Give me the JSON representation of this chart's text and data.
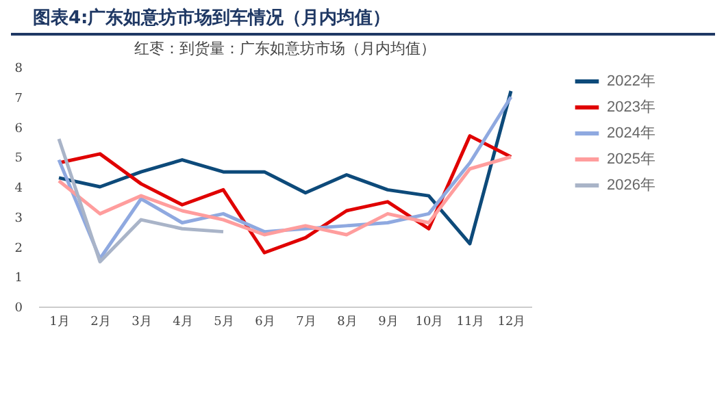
{
  "chart_data": {
    "type": "line",
    "title": "图表4:广东如意坊市场到车情况（月内均值）",
    "subtitle": "红枣：到货量：广东如意坊市场（月内均值）",
    "categories": [
      "1月",
      "2月",
      "3月",
      "4月",
      "5月",
      "6月",
      "7月",
      "8月",
      "9月",
      "10月",
      "11月",
      "12月"
    ],
    "series": [
      {
        "name": "2022年",
        "color": "#0d4a7a",
        "values": [
          4.3,
          4.0,
          4.5,
          4.9,
          4.5,
          4.5,
          3.8,
          4.4,
          3.9,
          3.7,
          2.1,
          7.2
        ]
      },
      {
        "name": "2023年",
        "color": "#e00000",
        "values": [
          4.8,
          5.1,
          4.1,
          3.4,
          3.9,
          1.8,
          2.3,
          3.2,
          3.5,
          2.6,
          5.7,
          5.0
        ]
      },
      {
        "name": "2024年",
        "color": "#8fa9e0",
        "values": [
          4.9,
          1.6,
          3.6,
          2.8,
          3.1,
          2.5,
          2.6,
          2.7,
          2.8,
          3.1,
          4.8,
          7.0
        ]
      },
      {
        "name": "2025年",
        "color": "#ff9d9d",
        "values": [
          4.2,
          3.1,
          3.7,
          3.2,
          2.9,
          2.4,
          2.7,
          2.4,
          3.1,
          2.8,
          4.6,
          5.0
        ]
      },
      {
        "name": "2026年",
        "color": "#a9b4c8",
        "values": [
          5.6,
          1.5,
          2.9,
          2.6,
          2.5,
          null,
          null,
          null,
          null,
          null,
          null,
          null
        ]
      }
    ],
    "ylim": [
      0,
      8
    ],
    "yticks": [
      0,
      1,
      2,
      3,
      4,
      5,
      6,
      7,
      8
    ],
    "grid": false,
    "legend": "right",
    "marker": "none",
    "line_style": "solid"
  }
}
